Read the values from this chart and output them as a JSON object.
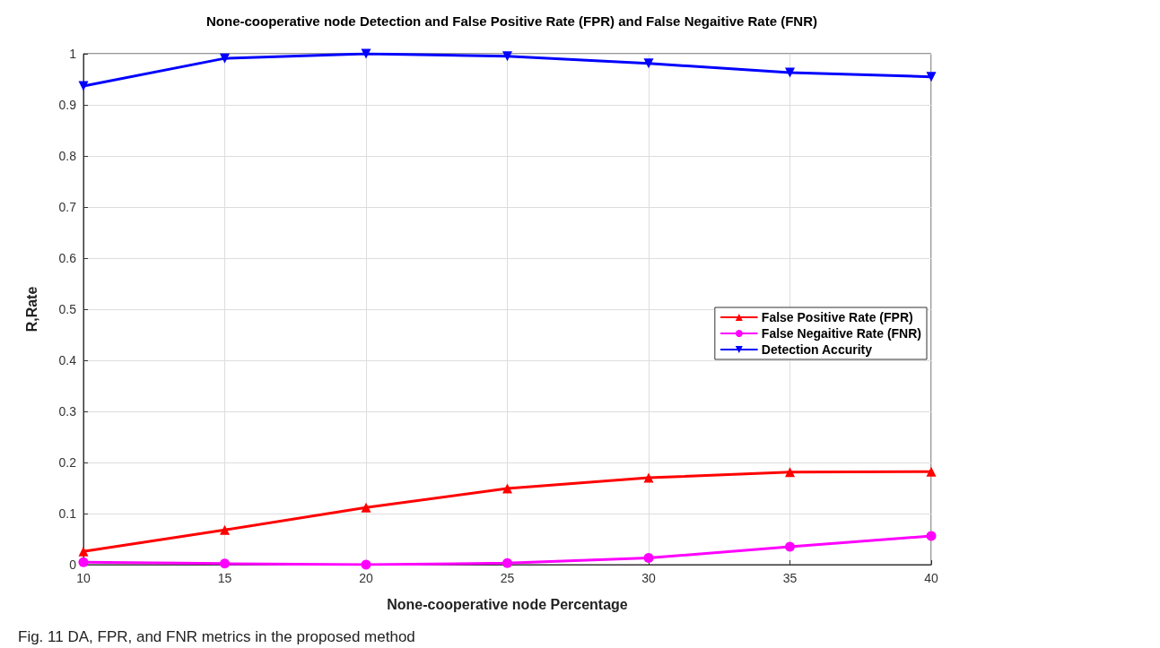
{
  "chart_data": {
    "type": "line",
    "title": "None-cooperative node Detection and False Positive Rate (FPR) and False Negaitive Rate (FNR)",
    "xlabel": "None-cooperative node Percentage",
    "ylabel": "R,Rate",
    "x": [
      10,
      15,
      20,
      25,
      30,
      35,
      40
    ],
    "series": [
      {
        "name": "False Positive Rate (FPR)",
        "color": "#ff0000",
        "marker": "triangle",
        "values": [
          0.026,
          0.068,
          0.112,
          0.149,
          0.17,
          0.181,
          0.182
        ]
      },
      {
        "name": "False Negaitive Rate (FNR)",
        "color": "#ff00ff",
        "marker": "circle",
        "values": [
          0.005,
          0.002,
          0.0,
          0.003,
          0.013,
          0.035,
          0.056
        ]
      },
      {
        "name": "Detection Accurity",
        "color": "#0000ff",
        "marker": "triangle-down",
        "values": [
          0.937,
          0.991,
          1.0,
          0.995,
          0.981,
          0.963,
          0.955
        ]
      }
    ],
    "xlim": [
      10,
      40
    ],
    "xticks": [
      10,
      15,
      20,
      25,
      30,
      35,
      40
    ],
    "ylim": [
      0,
      1
    ],
    "yticks": [
      0,
      0.1,
      0.2,
      0.3,
      0.4,
      0.5,
      0.6,
      0.7,
      0.8,
      0.9,
      1
    ],
    "grid": true,
    "legend": "right",
    "line_style": "solid",
    "annotations": [
      "Fig. 11 DA, FPR, and FNR metrics in the proposed method"
    ]
  }
}
